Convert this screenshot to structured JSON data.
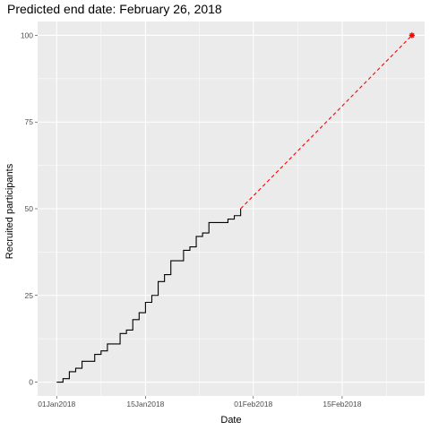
{
  "chart_data": {
    "type": "line",
    "title": "Predicted end date: February 26, 2018",
    "xlabel": "Date",
    "ylabel": "Recruited participants",
    "x_axis_type": "date",
    "xlim": [
      "2017-12-29",
      "2018-02-28"
    ],
    "ylim": [
      -4,
      104
    ],
    "x_ticks": [
      {
        "date": "2018-01-01",
        "label": "01Jan2018"
      },
      {
        "date": "2018-01-15",
        "label": "15Jan2018"
      },
      {
        "date": "2018-02-01",
        "label": "01Feb2018"
      },
      {
        "date": "2018-02-15",
        "label": "15Feb2018"
      }
    ],
    "y_ticks": [
      0,
      25,
      50,
      75,
      100
    ],
    "grid": true,
    "background": "#ebebeb",
    "series": [
      {
        "style": "step",
        "color": "#000000",
        "points": [
          {
            "x": "2018-01-01",
            "y": 0
          },
          {
            "x": "2018-01-02",
            "y": 1
          },
          {
            "x": "2018-01-03",
            "y": 3
          },
          {
            "x": "2018-01-04",
            "y": 4
          },
          {
            "x": "2018-01-05",
            "y": 6
          },
          {
            "x": "2018-01-07",
            "y": 8
          },
          {
            "x": "2018-01-08",
            "y": 9
          },
          {
            "x": "2018-01-09",
            "y": 11
          },
          {
            "x": "2018-01-11",
            "y": 14
          },
          {
            "x": "2018-01-12",
            "y": 15
          },
          {
            "x": "2018-01-13",
            "y": 18
          },
          {
            "x": "2018-01-14",
            "y": 20
          },
          {
            "x": "2018-01-15",
            "y": 23
          },
          {
            "x": "2018-01-16",
            "y": 25
          },
          {
            "x": "2018-01-17",
            "y": 29
          },
          {
            "x": "2018-01-18",
            "y": 31
          },
          {
            "x": "2018-01-19",
            "y": 35
          },
          {
            "x": "2018-01-21",
            "y": 38
          },
          {
            "x": "2018-01-22",
            "y": 39
          },
          {
            "x": "2018-01-23",
            "y": 42
          },
          {
            "x": "2018-01-24",
            "y": 43
          },
          {
            "x": "2018-01-25",
            "y": 46
          },
          {
            "x": "2018-01-28",
            "y": 47
          },
          {
            "x": "2018-01-29",
            "y": 48
          },
          {
            "x": "2018-01-30",
            "y": 50
          }
        ]
      },
      {
        "style": "dashed",
        "color": "#ff0000",
        "points": [
          {
            "x": "2018-01-30",
            "y": 50
          },
          {
            "x": "2018-02-26",
            "y": 100
          }
        ]
      }
    ],
    "annotations": [
      {
        "type": "point",
        "x": "2018-02-26",
        "y": 100,
        "color": "#ff0000",
        "shape": "star"
      }
    ]
  }
}
